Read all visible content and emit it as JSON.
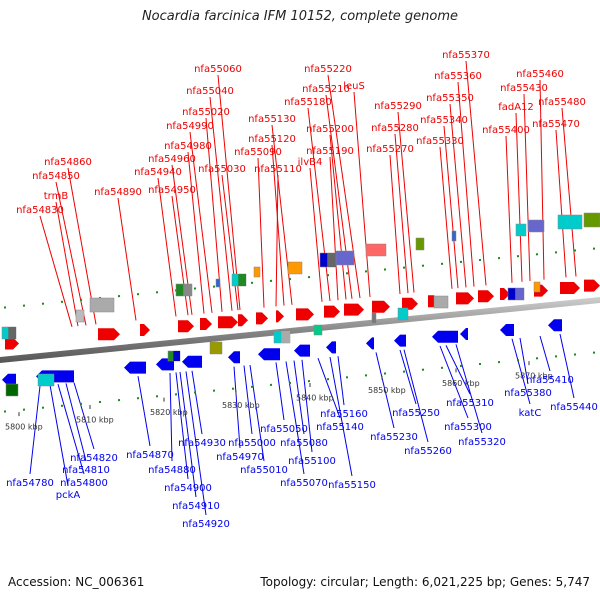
{
  "title": "Nocardia farcinica IFM 10152, complete genome",
  "footer": {
    "accession": "Accession: NC_006361",
    "topology": "Topology: circular; Length: 6,021,225 bp; Genes: 5,747"
  },
  "colors": {
    "forward": "#ee0000",
    "reverse": "#0000ee",
    "backbone": "#888888"
  },
  "kbp_ticks": [
    "5800 kbp",
    "5810 kbp",
    "5820 kbp",
    "5830 kbp",
    "5840 kbp",
    "5850 kbp",
    "5860 kbp",
    "5870 kbp"
  ],
  "upper_labels": [
    "nfa54830",
    "trmB",
    "nfa54850",
    "nfa54860",
    "nfa54890",
    "nfa54940",
    "nfa54950",
    "nfa54960",
    "nfa54980",
    "nfa54990",
    "nfa55020",
    "nfa55030",
    "nfa55040",
    "nfa55060",
    "nfa55090",
    "nfa55110",
    "nfa55120",
    "nfa55130",
    "ilvB4",
    "nfa55180",
    "nfa55190",
    "nfa55200",
    "nfa55210",
    "nfa55220",
    "leuS",
    "nfa55270",
    "nfa55280",
    "nfa55290",
    "nfa55330",
    "nfa55340",
    "nfa55350",
    "nfa55360",
    "nfa55370",
    "nfa55400",
    "fadA12",
    "nfa55430",
    "nfa55460",
    "nfa55470",
    "nfa55480"
  ],
  "lower_labels": [
    "nfa54780",
    "pckA",
    "nfa54800",
    "nfa54810",
    "nfa54820",
    "nfa54870",
    "nfa54880",
    "nfa54900",
    "nfa54910",
    "nfa54920",
    "nfa54930",
    "nfa54970",
    "nfa55000",
    "nfa55010",
    "nfa55050",
    "nfa55070",
    "nfa55080",
    "nfa55100",
    "nfa55140",
    "nfa55150",
    "nfa55160",
    "nfa55230",
    "nfa55250",
    "nfa55260",
    "nfa55300",
    "nfa55310",
    "nfa55320",
    "katC",
    "nfa55380",
    "nfa55410",
    "nfa55440"
  ]
}
